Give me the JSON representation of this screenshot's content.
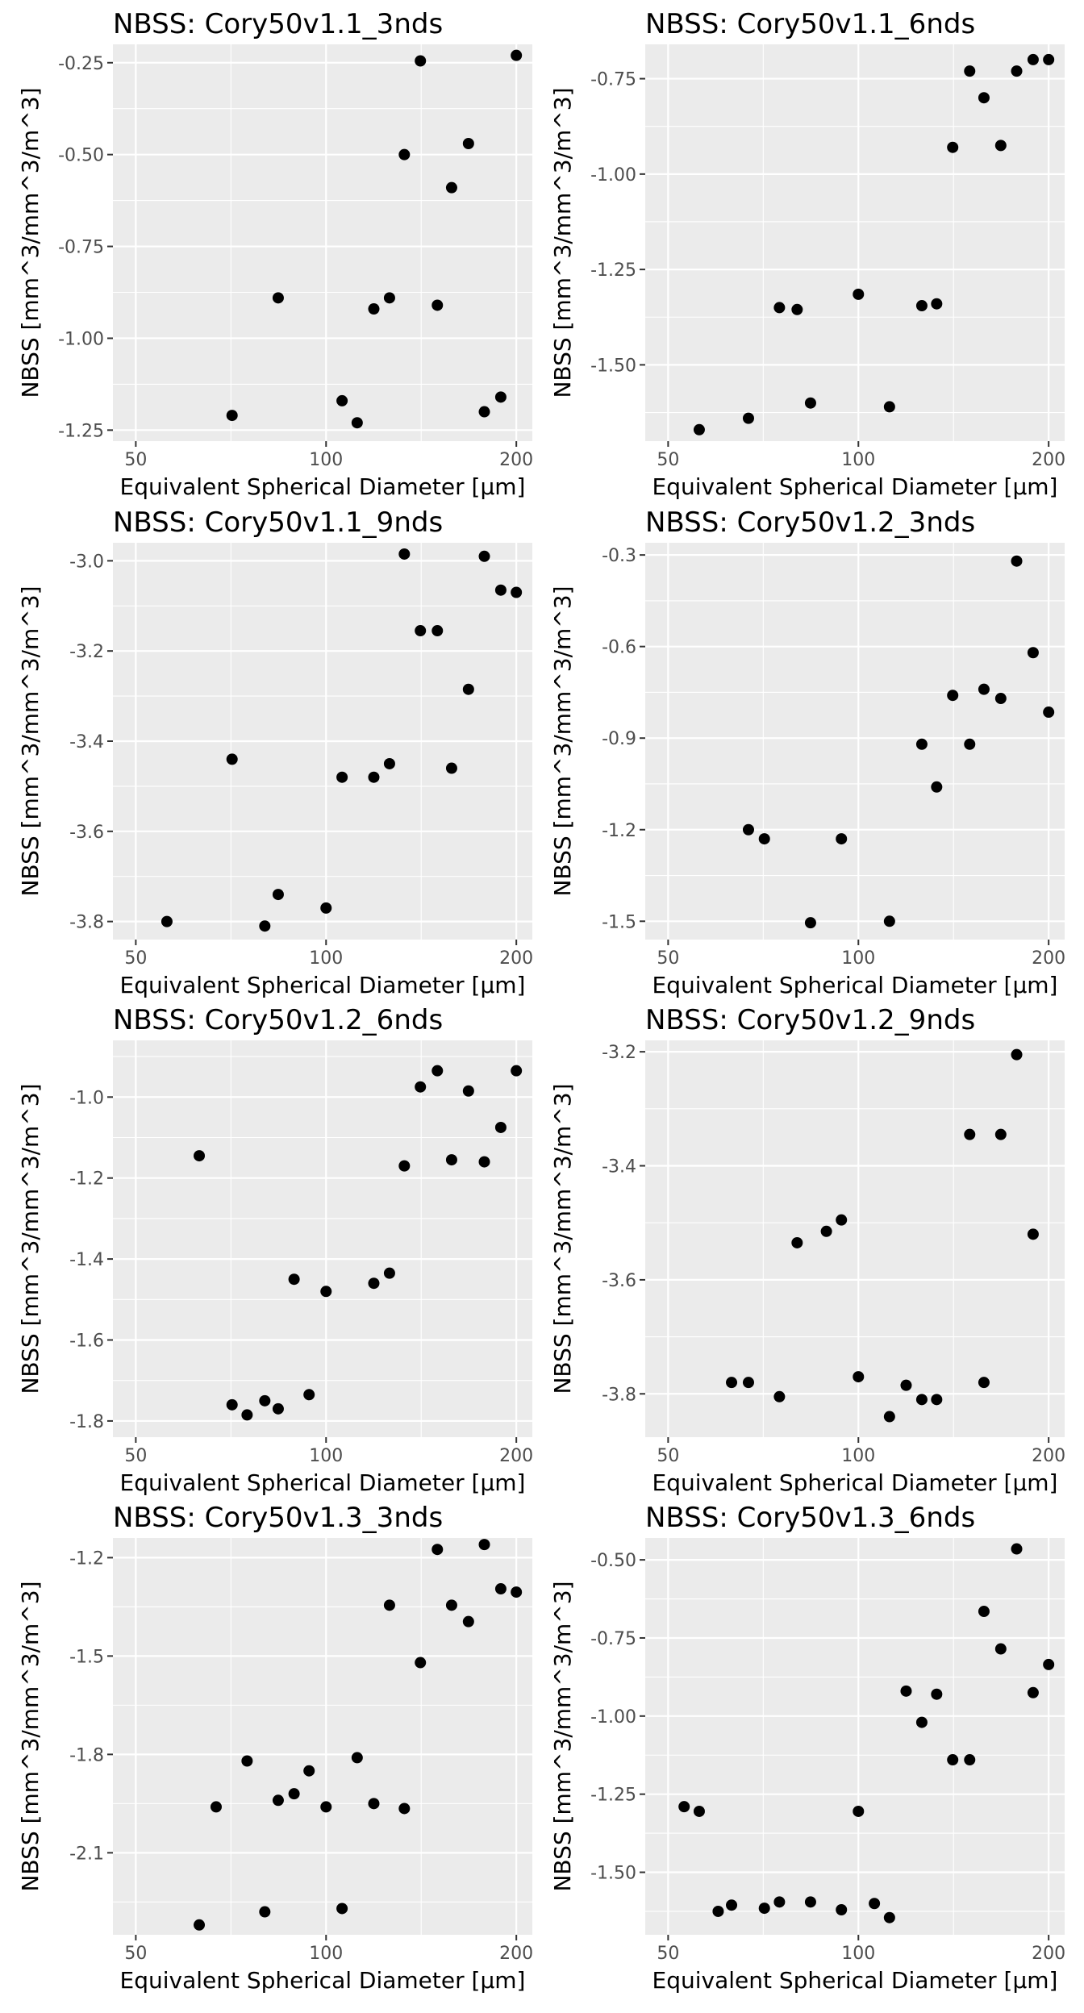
{
  "chart_data": [
    {
      "type": "scatter",
      "title": "NBSS: Cory50v1.1_3nds",
      "xlabel": "Equivalent Spherical Diameter [µm]",
      "ylabel": "NBSS [mm^3/mm^3/m^3]",
      "x_scale": "log10",
      "xlim": [
        46,
        212
      ],
      "ylim": [
        -1.28,
        -0.2
      ],
      "x_ticks": [
        50,
        100,
        200
      ],
      "y_ticks": [
        -1.25,
        -1.0,
        -0.75,
        -0.5,
        -0.25
      ],
      "y_tick_labels": [
        "-1.25",
        "-1.00",
        "-0.75",
        "-0.50",
        "-0.25"
      ],
      "points": [
        {
          "x": 71,
          "y": -1.21
        },
        {
          "x": 84,
          "y": -0.89
        },
        {
          "x": 106,
          "y": -1.17
        },
        {
          "x": 112,
          "y": -1.23
        },
        {
          "x": 119,
          "y": -0.92
        },
        {
          "x": 126,
          "y": -0.89
        },
        {
          "x": 133,
          "y": -0.5
        },
        {
          "x": 141,
          "y": -0.245
        },
        {
          "x": 150,
          "y": -0.91
        },
        {
          "x": 158,
          "y": -0.59
        },
        {
          "x": 168,
          "y": -0.47
        },
        {
          "x": 178,
          "y": -1.2
        },
        {
          "x": 189,
          "y": -1.16
        },
        {
          "x": 200,
          "y": -0.23
        }
      ]
    },
    {
      "type": "scatter",
      "title": "NBSS: Cory50v1.1_6nds",
      "xlabel": "Equivalent Spherical Diameter [µm]",
      "ylabel": "NBSS [mm^3/mm^3/m^3]",
      "x_scale": "log10",
      "xlim": [
        46,
        212
      ],
      "ylim": [
        -1.7,
        -0.66
      ],
      "x_ticks": [
        50,
        100,
        200
      ],
      "y_ticks": [
        -1.5,
        -1.25,
        -1.0,
        -0.75
      ],
      "y_tick_labels": [
        "-1.50",
        "-1.25",
        "-1.00",
        "-0.75"
      ],
      "points": [
        {
          "x": 56,
          "y": -1.67
        },
        {
          "x": 67,
          "y": -1.64
        },
        {
          "x": 75,
          "y": -1.35
        },
        {
          "x": 80,
          "y": -1.355
        },
        {
          "x": 84,
          "y": -1.6
        },
        {
          "x": 100,
          "y": -1.315
        },
        {
          "x": 112,
          "y": -1.61
        },
        {
          "x": 126,
          "y": -1.345
        },
        {
          "x": 133,
          "y": -1.34
        },
        {
          "x": 141,
          "y": -0.93
        },
        {
          "x": 150,
          "y": -0.73
        },
        {
          "x": 158,
          "y": -0.8
        },
        {
          "x": 168,
          "y": -0.925
        },
        {
          "x": 178,
          "y": -0.73
        },
        {
          "x": 189,
          "y": -0.7
        },
        {
          "x": 200,
          "y": -0.7
        }
      ]
    },
    {
      "type": "scatter",
      "title": "NBSS: Cory50v1.1_9nds",
      "xlabel": "Equivalent Spherical Diameter [µm]",
      "ylabel": "NBSS [mm^3/mm^3/m^3]",
      "x_scale": "log10",
      "xlim": [
        46,
        212
      ],
      "ylim": [
        -3.84,
        -2.96
      ],
      "x_ticks": [
        50,
        100,
        200
      ],
      "y_ticks": [
        -3.8,
        -3.6,
        -3.4,
        -3.2,
        -3.0
      ],
      "y_tick_labels": [
        "-3.8",
        "-3.6",
        "-3.4",
        "-3.2",
        "-3.0"
      ],
      "points": [
        {
          "x": 56,
          "y": -3.8
        },
        {
          "x": 71,
          "y": -3.44
        },
        {
          "x": 80,
          "y": -3.81
        },
        {
          "x": 84,
          "y": -3.74
        },
        {
          "x": 100,
          "y": -3.77
        },
        {
          "x": 106,
          "y": -3.48
        },
        {
          "x": 119,
          "y": -3.48
        },
        {
          "x": 126,
          "y": -3.45
        },
        {
          "x": 133,
          "y": -2.985
        },
        {
          "x": 141,
          "y": -3.155
        },
        {
          "x": 150,
          "y": -3.155
        },
        {
          "x": 158,
          "y": -3.46
        },
        {
          "x": 168,
          "y": -3.285
        },
        {
          "x": 178,
          "y": -2.99
        },
        {
          "x": 189,
          "y": -3.065
        },
        {
          "x": 200,
          "y": -3.07
        }
      ]
    },
    {
      "type": "scatter",
      "title": "NBSS: Cory50v1.2_3nds",
      "xlabel": "Equivalent Spherical Diameter [µm]",
      "ylabel": "NBSS [mm^3/mm^3/m^3]",
      "x_scale": "log10",
      "xlim": [
        46,
        212
      ],
      "ylim": [
        -1.56,
        -0.26
      ],
      "x_ticks": [
        50,
        100,
        200
      ],
      "y_ticks": [
        -1.5,
        -1.2,
        -0.9,
        -0.6,
        -0.3
      ],
      "y_tick_labels": [
        "-1.5",
        "-1.2",
        "-0.9",
        "-0.6",
        "-0.3"
      ],
      "points": [
        {
          "x": 67,
          "y": -1.2
        },
        {
          "x": 71,
          "y": -1.23
        },
        {
          "x": 84,
          "y": -1.505
        },
        {
          "x": 94,
          "y": -1.23
        },
        {
          "x": 112,
          "y": -1.5
        },
        {
          "x": 126,
          "y": -0.92
        },
        {
          "x": 133,
          "y": -1.06
        },
        {
          "x": 141,
          "y": -0.76
        },
        {
          "x": 150,
          "y": -0.92
        },
        {
          "x": 158,
          "y": -0.74
        },
        {
          "x": 168,
          "y": -0.77
        },
        {
          "x": 178,
          "y": -0.32
        },
        {
          "x": 189,
          "y": -0.62
        },
        {
          "x": 200,
          "y": -0.815
        }
      ]
    },
    {
      "type": "scatter",
      "title": "NBSS: Cory50v1.2_6nds",
      "xlabel": "Equivalent Spherical Diameter [µm]",
      "ylabel": "NBSS [mm^3/mm^3/m^3]",
      "x_scale": "log10",
      "xlim": [
        46,
        212
      ],
      "ylim": [
        -1.84,
        -0.86
      ],
      "x_ticks": [
        50,
        100,
        200
      ],
      "y_ticks": [
        -1.8,
        -1.6,
        -1.4,
        -1.2,
        -1.0
      ],
      "y_tick_labels": [
        "-1.8",
        "-1.6",
        "-1.4",
        "-1.2",
        "-1.0"
      ],
      "points": [
        {
          "x": 63,
          "y": -1.145
        },
        {
          "x": 71,
          "y": -1.76
        },
        {
          "x": 75,
          "y": -1.785
        },
        {
          "x": 80,
          "y": -1.75
        },
        {
          "x": 84,
          "y": -1.77
        },
        {
          "x": 89,
          "y": -1.45
        },
        {
          "x": 94,
          "y": -1.735
        },
        {
          "x": 100,
          "y": -1.48
        },
        {
          "x": 119,
          "y": -1.46
        },
        {
          "x": 126,
          "y": -1.435
        },
        {
          "x": 133,
          "y": -1.17
        },
        {
          "x": 141,
          "y": -0.975
        },
        {
          "x": 150,
          "y": -0.935
        },
        {
          "x": 158,
          "y": -1.155
        },
        {
          "x": 168,
          "y": -0.985
        },
        {
          "x": 178,
          "y": -1.16
        },
        {
          "x": 189,
          "y": -1.075
        },
        {
          "x": 200,
          "y": -0.935
        }
      ]
    },
    {
      "type": "scatter",
      "title": "NBSS: Cory50v1.2_9nds",
      "xlabel": "Equivalent Spherical Diameter [µm]",
      "ylabel": "NBSS [mm^3/mm^3/m^3]",
      "x_scale": "log10",
      "xlim": [
        46,
        212
      ],
      "ylim": [
        -3.876,
        -3.18
      ],
      "x_ticks": [
        50,
        100,
        200
      ],
      "y_ticks": [
        -3.8,
        -3.6,
        -3.4,
        -3.2
      ],
      "y_tick_labels": [
        "-3.8",
        "-3.6",
        "-3.4",
        "-3.2"
      ],
      "points": [
        {
          "x": 63,
          "y": -3.78
        },
        {
          "x": 67,
          "y": -3.78
        },
        {
          "x": 75,
          "y": -3.805
        },
        {
          "x": 80,
          "y": -3.535
        },
        {
          "x": 89,
          "y": -3.515
        },
        {
          "x": 94,
          "y": -3.495
        },
        {
          "x": 100,
          "y": -3.77
        },
        {
          "x": 112,
          "y": -3.84
        },
        {
          "x": 119,
          "y": -3.785
        },
        {
          "x": 126,
          "y": -3.81
        },
        {
          "x": 133,
          "y": -3.81
        },
        {
          "x": 150,
          "y": -3.345
        },
        {
          "x": 158,
          "y": -3.78
        },
        {
          "x": 168,
          "y": -3.345
        },
        {
          "x": 178,
          "y": -3.205
        },
        {
          "x": 189,
          "y": -3.52
        }
      ]
    },
    {
      "type": "scatter",
      "title": "NBSS: Cory50v1.3_3nds",
      "xlabel": "Equivalent Spherical Diameter [µm]",
      "ylabel": "NBSS [mm^3/mm^3/m^3]",
      "x_scale": "log10",
      "xlim": [
        46,
        212
      ],
      "ylim": [
        -2.35,
        -1.14
      ],
      "x_ticks": [
        50,
        100,
        200
      ],
      "y_ticks": [
        -2.1,
        -1.8,
        -1.5,
        -1.2
      ],
      "y_tick_labels": [
        "-2.1",
        "-1.8",
        "-1.5",
        "-1.2"
      ],
      "points": [
        {
          "x": 63,
          "y": -2.32
        },
        {
          "x": 67,
          "y": -1.96
        },
        {
          "x": 75,
          "y": -1.82
        },
        {
          "x": 80,
          "y": -2.28
        },
        {
          "x": 84,
          "y": -1.94
        },
        {
          "x": 89,
          "y": -1.92
        },
        {
          "x": 94,
          "y": -1.85
        },
        {
          "x": 100,
          "y": -1.96
        },
        {
          "x": 106,
          "y": -2.27
        },
        {
          "x": 112,
          "y": -1.81
        },
        {
          "x": 119,
          "y": -1.95
        },
        {
          "x": 126,
          "y": -1.345
        },
        {
          "x": 133,
          "y": -1.965
        },
        {
          "x": 141,
          "y": -1.52
        },
        {
          "x": 150,
          "y": -1.175
        },
        {
          "x": 158,
          "y": -1.345
        },
        {
          "x": 168,
          "y": -1.395
        },
        {
          "x": 178,
          "y": -1.16
        },
        {
          "x": 189,
          "y": -1.295
        },
        {
          "x": 200,
          "y": -1.305
        }
      ]
    },
    {
      "type": "scatter",
      "title": "NBSS: Cory50v1.3_6nds",
      "xlabel": "Equivalent Spherical Diameter [µm]",
      "ylabel": "NBSS [mm^3/mm^3/m^3]",
      "x_scale": "log10",
      "xlim": [
        46,
        212
      ],
      "ylim": [
        -1.7,
        -0.43
      ],
      "x_ticks": [
        50,
        100,
        200
      ],
      "y_ticks": [
        -1.5,
        -1.25,
        -1.0,
        -0.75,
        -0.5
      ],
      "y_tick_labels": [
        "-1.50",
        "-1.25",
        "-1.00",
        "-0.75",
        "-0.50"
      ],
      "points": [
        {
          "x": 53,
          "y": -1.29
        },
        {
          "x": 56,
          "y": -1.305
        },
        {
          "x": 60,
          "y": -1.625
        },
        {
          "x": 63,
          "y": -1.605
        },
        {
          "x": 71,
          "y": -1.615
        },
        {
          "x": 75,
          "y": -1.595
        },
        {
          "x": 84,
          "y": -1.595
        },
        {
          "x": 94,
          "y": -1.62
        },
        {
          "x": 100,
          "y": -1.305
        },
        {
          "x": 106,
          "y": -1.6
        },
        {
          "x": 112,
          "y": -1.645
        },
        {
          "x": 119,
          "y": -0.92
        },
        {
          "x": 126,
          "y": -1.02
        },
        {
          "x": 133,
          "y": -0.93
        },
        {
          "x": 141,
          "y": -1.14
        },
        {
          "x": 150,
          "y": -1.14
        },
        {
          "x": 158,
          "y": -0.665
        },
        {
          "x": 168,
          "y": -0.785
        },
        {
          "x": 178,
          "y": -0.465
        },
        {
          "x": 189,
          "y": -0.925
        },
        {
          "x": 200,
          "y": -0.835
        }
      ]
    }
  ]
}
